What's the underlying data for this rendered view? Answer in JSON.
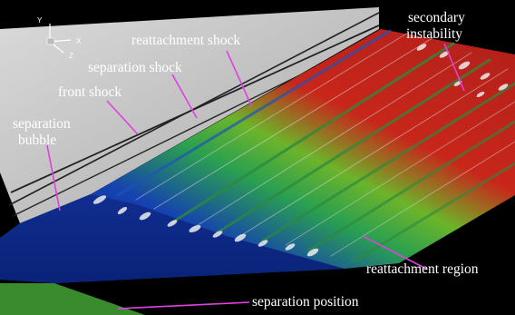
{
  "figure": {
    "axis_triad": {
      "y_label": "Y",
      "x_label": "X",
      "z_label": "Z"
    },
    "annotations": {
      "reattachment_shock": "reattachment shock",
      "separation_shock": "separation shock",
      "front_shock": "front shock",
      "separation_bubble_line1": "separation",
      "separation_bubble_line2": "bubble",
      "secondary_instability_line1": "secondary",
      "secondary_instability_line2": "instability",
      "reattachment_region": "reattachment region",
      "separation_position": "separation position"
    },
    "colors": {
      "background": "#000000",
      "ramp_surface": "#c8c8c8",
      "low_value": "#0b2a8c",
      "mid_value": "#3a9a3a",
      "high_value": "#b0201a",
      "annotation_leader": "#e040e0",
      "annotation_text": "#ffffff"
    }
  }
}
